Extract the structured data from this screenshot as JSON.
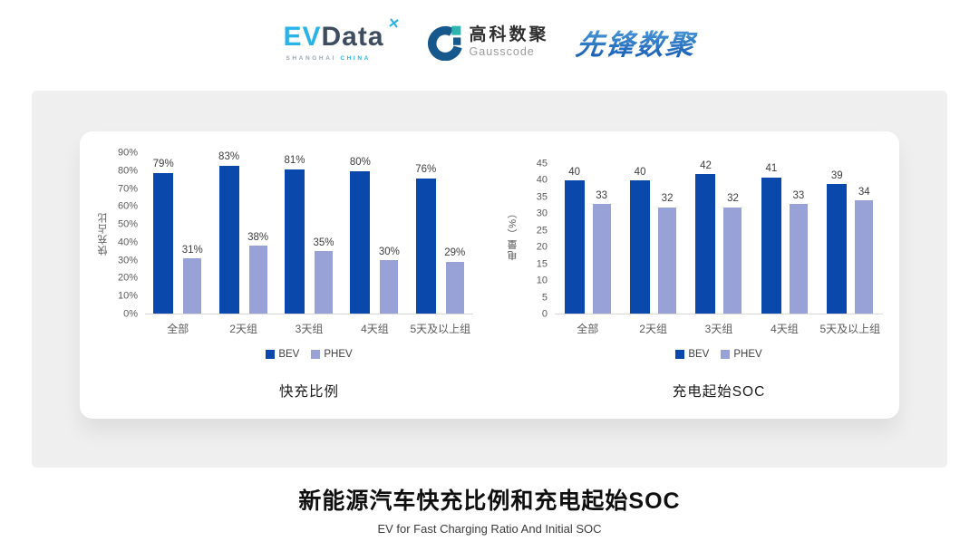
{
  "header": {
    "evdata": {
      "ev": "EV",
      "data": "Data",
      "sub_left": "SHANGHAI",
      "sub_right": "CHINA"
    },
    "gausscode": {
      "cn": "高科数聚",
      "en": "Gausscode"
    },
    "xianfeng": {
      "text": "先锋数聚"
    }
  },
  "colors": {
    "bev": "#0b48ab",
    "phev": "#98a2d6",
    "panel_bg": "#efefef",
    "evdata_cyan": "#2ab3e6",
    "evdata_dark": "#3d4c5e",
    "gc_blue": "#17588c",
    "gc_teal": "#2cb5ae",
    "xf_blue1": "#4f9dda",
    "xf_blue2": "#1b61b6"
  },
  "chart_data": [
    {
      "type": "bar",
      "title": "快充比例",
      "ylabel": "快充占比",
      "xlabel": "",
      "categories": [
        "全部",
        "2天组",
        "3天组",
        "4天组",
        "5天及以上组"
      ],
      "series": [
        {
          "name": "BEV",
          "values": [
            79,
            83,
            81,
            80,
            76
          ],
          "color": "#0b48ab"
        },
        {
          "name": "PHEV",
          "values": [
            31,
            38,
            35,
            30,
            29
          ],
          "color": "#98a2d6"
        }
      ],
      "ylim": [
        0,
        90
      ],
      "yticks": [
        0,
        10,
        20,
        30,
        40,
        50,
        60,
        70,
        80,
        90
      ],
      "ytick_suffix": "%",
      "value_suffix": "%",
      "grid": false,
      "legend_position": "bottom"
    },
    {
      "type": "bar",
      "title": "充电起始SOC",
      "ylabel": "电量（%）",
      "xlabel": "",
      "categories": [
        "全部",
        "2天组",
        "3天组",
        "4天组",
        "5天及以上组"
      ],
      "series": [
        {
          "name": "BEV",
          "values": [
            40,
            40,
            42,
            41,
            39
          ],
          "color": "#0b48ab"
        },
        {
          "name": "PHEV",
          "values": [
            33,
            32,
            32,
            33,
            34
          ],
          "color": "#98a2d6"
        }
      ],
      "ylim": [
        0,
        45
      ],
      "yticks": [
        0,
        5,
        10,
        15,
        20,
        25,
        30,
        35,
        40,
        45
      ],
      "ytick_suffix": "",
      "value_suffix": "",
      "grid": false,
      "legend_position": "bottom"
    }
  ],
  "footer": {
    "title": "新能源汽车快充比例和充电起始SOC",
    "subtitle": "EV for Fast Charging Ratio And Initial SOC"
  }
}
